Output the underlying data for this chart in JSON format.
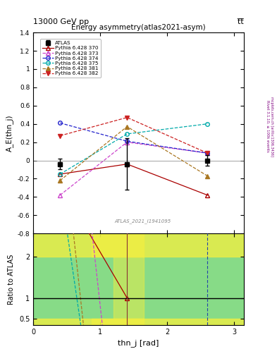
{
  "title_top": "13000 GeV pp",
  "title_top_right": "t̅t̅",
  "plot_title": "Energy asymmetry(atlas2021-asym)",
  "xlabel": "thn_j [rad]",
  "ylabel_main": "A_E(thn_j)",
  "ylabel_ratio": "Ratio to ATLAS",
  "watermark": "ATLAS_2021_I1941095",
  "rivet_label": "Rivet 3.1.10, ≥ 100k events",
  "mcplots_label": "mcplots.cern.ch [arXiv:1306.3436]",
  "xlim": [
    0,
    3.14159
  ],
  "ylim_main": [
    -0.8,
    1.4
  ],
  "ylim_ratio": [
    0.35,
    2.55
  ],
  "atlas_data": {
    "x": [
      0.4,
      1.4,
      2.6
    ],
    "y": [
      -0.04,
      -0.04,
      0.0
    ],
    "yerr": [
      0.06,
      0.28,
      0.06
    ],
    "color": "#000000",
    "label": "ATLAS",
    "marker": "s",
    "markersize": 5
  },
  "mc_series": [
    {
      "label": "Pythia 6.428 370",
      "x": [
        0.4,
        1.4,
        2.6
      ],
      "y": [
        -0.15,
        -0.04,
        -0.38
      ],
      "color": "#aa0000",
      "key": "370"
    },
    {
      "label": "Pythia 6.428 373",
      "x": [
        0.4,
        1.4,
        2.6
      ],
      "y": [
        -0.38,
        0.2,
        0.08
      ],
      "color": "#cc44cc",
      "key": "373"
    },
    {
      "label": "Pythia 6.428 374",
      "x": [
        0.4,
        1.4,
        2.6
      ],
      "y": [
        0.41,
        0.21,
        0.08
      ],
      "color": "#2222cc",
      "key": "374"
    },
    {
      "label": "Pythia 6.428 375",
      "x": [
        0.4,
        1.4,
        2.6
      ],
      "y": [
        -0.15,
        0.29,
        0.4
      ],
      "color": "#00aaaa",
      "key": "375"
    },
    {
      "label": "Pythia 6.428 381",
      "x": [
        0.4,
        1.4,
        2.6
      ],
      "y": [
        -0.22,
        0.37,
        -0.17
      ],
      "color": "#aa7722",
      "key": "381"
    },
    {
      "label": "Pythia 6.428 382",
      "x": [
        0.4,
        1.4,
        2.6
      ],
      "y": [
        0.27,
        0.47,
        0.08
      ],
      "color": "#cc2222",
      "key": "382"
    }
  ],
  "colors_map": {
    "370": "#aa0000",
    "373": "#cc44cc",
    "374": "#2222cc",
    "375": "#00aaaa",
    "381": "#aa7722",
    "382": "#cc2222"
  },
  "background_color": "#ffffff",
  "green_band_color": "#55cc55",
  "yellow_band_color": "#eeee44"
}
